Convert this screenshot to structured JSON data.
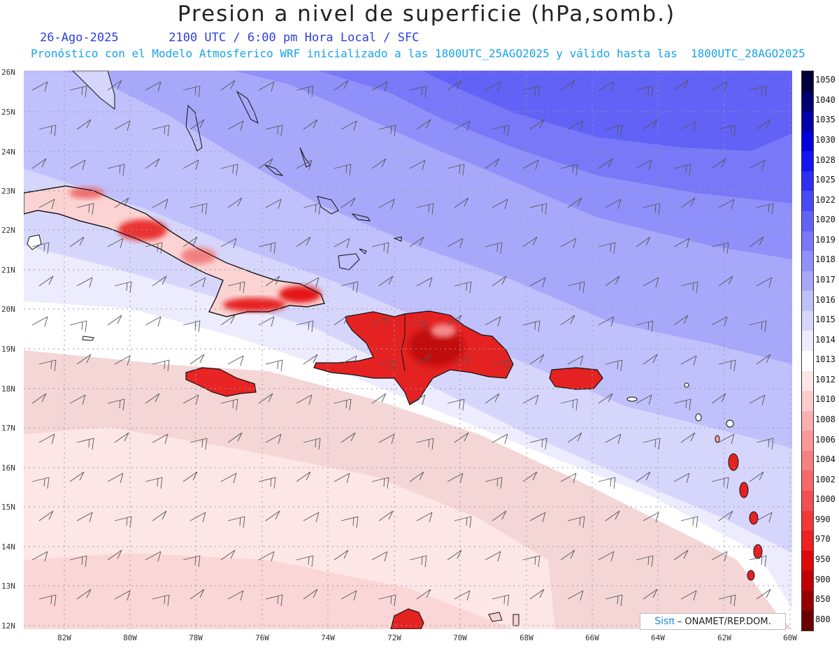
{
  "title": "Presion a nivel de superficie (hPa,somb.)",
  "date": "26-Ago-2025",
  "time_label": "2100 UTC / 6:00 pm Hora Local / SFC",
  "model_line": "Pronóstico con el Modelo Atmosferico WRF inicializado a las 1800UTC_25AGO2025 y válido hasta las  1800UTC_28AGO2025",
  "lat_labels": [
    "26N",
    "25N",
    "24N",
    "23N",
    "22N",
    "21N",
    "20N",
    "19N",
    "18N",
    "17N",
    "16N",
    "15N",
    "14N",
    "13N",
    "12N"
  ],
  "lon_labels": [
    "82W",
    "80W",
    "78W",
    "76W",
    "74W",
    "72W",
    "70W",
    "68W",
    "66W",
    "64W",
    "62W",
    "60W"
  ],
  "colorbar": {
    "labels": [
      "1050",
      "1040",
      "1035",
      "1030",
      "1028",
      "1025",
      "1022",
      "1020",
      "1019",
      "1018",
      "1017",
      "1016",
      "1015",
      "1014",
      "1013",
      "1012",
      "1010",
      "1008",
      "1006",
      "1004",
      "1002",
      "1000",
      "990",
      "970",
      "950",
      "900",
      "850",
      "800"
    ],
    "colors": [
      "#00003a",
      "#00006e",
      "#0000a8",
      "#0000dc",
      "#1414f0",
      "#2e2ef2",
      "#4848f4",
      "#6262f6",
      "#7878f8",
      "#9090fa",
      "#a8a8fb",
      "#c0c0fc",
      "#d6d6fd",
      "#ececfe",
      "#ffffff",
      "#fde6e6",
      "#fccccc",
      "#fab0b0",
      "#f89898",
      "#f68080",
      "#f46868",
      "#f25050",
      "#f03838",
      "#ee2020",
      "#e00808",
      "#c00000",
      "#980000",
      "#6a0000"
    ]
  },
  "logo": {
    "brand": "Sisπ",
    "text": "– ONAMET/REP.DOM."
  }
}
